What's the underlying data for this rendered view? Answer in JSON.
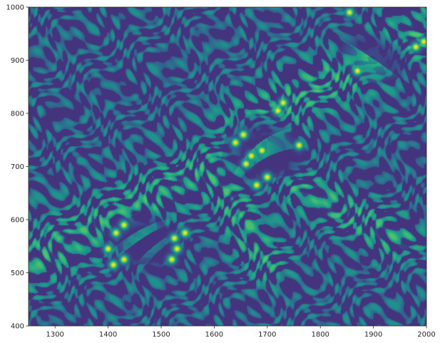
{
  "chart_data": {
    "type": "heatmap",
    "title": "",
    "xlabel": "",
    "ylabel": "",
    "xlim": [
      1250,
      2000
    ],
    "ylim": [
      400,
      1000
    ],
    "x_ticks": [
      1300,
      1400,
      1500,
      1600,
      1700,
      1800,
      1900,
      2000
    ],
    "y_ticks": [
      400,
      500,
      600,
      700,
      800,
      900,
      1000
    ],
    "colormap": "viridis",
    "colorbar": false,
    "grid": false,
    "features": {
      "dark_lobes": [
        {
          "cx": 1470,
          "cy": 560,
          "rx": 85,
          "ry": 65,
          "angle": -10
        },
        {
          "cx": 1690,
          "cy": 730,
          "rx": 100,
          "ry": 75,
          "angle": -15
        },
        {
          "cx": 1900,
          "cy": 905,
          "rx": 85,
          "ry": 55,
          "angle": -20
        }
      ],
      "ridges": [
        {
          "from": [
            1250,
            520
          ],
          "to": [
            1640,
            720
          ],
          "width": 40
        },
        {
          "from": [
            1650,
            770
          ],
          "to": [
            2000,
            960
          ],
          "width": 40
        },
        {
          "from": [
            1590,
            700
          ],
          "to": [
            1700,
            520
          ],
          "width": 30
        },
        {
          "from": [
            1760,
            660
          ],
          "to": [
            1950,
            560
          ],
          "width": 30
        }
      ],
      "hotspots": [
        {
          "x": 1415,
          "y": 575
        },
        {
          "x": 1430,
          "y": 590
        },
        {
          "x": 1400,
          "y": 545
        },
        {
          "x": 1410,
          "y": 515
        },
        {
          "x": 1430,
          "y": 525
        },
        {
          "x": 1520,
          "y": 525
        },
        {
          "x": 1530,
          "y": 545
        },
        {
          "x": 1545,
          "y": 575
        },
        {
          "x": 1525,
          "y": 565
        },
        {
          "x": 1640,
          "y": 745
        },
        {
          "x": 1660,
          "y": 705
        },
        {
          "x": 1670,
          "y": 720
        },
        {
          "x": 1690,
          "y": 730
        },
        {
          "x": 1655,
          "y": 760
        },
        {
          "x": 1720,
          "y": 805
        },
        {
          "x": 1730,
          "y": 820
        },
        {
          "x": 1760,
          "y": 740
        },
        {
          "x": 1700,
          "y": 680
        },
        {
          "x": 1680,
          "y": 665
        },
        {
          "x": 1855,
          "y": 990
        },
        {
          "x": 1980,
          "y": 925
        },
        {
          "x": 1995,
          "y": 935
        },
        {
          "x": 1870,
          "y": 880
        }
      ]
    }
  }
}
